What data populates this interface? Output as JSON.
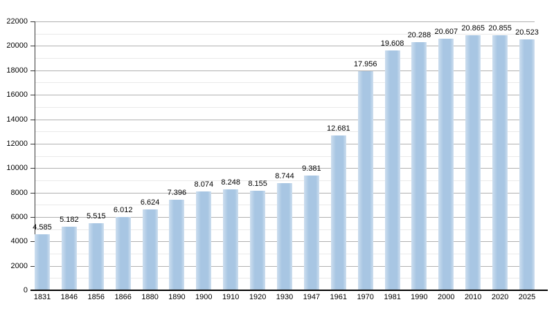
{
  "chart_data": {
    "type": "bar",
    "title": "",
    "xlabel": "",
    "ylabel": "",
    "categories": [
      "1831",
      "1846",
      "1856",
      "1866",
      "1880",
      "1890",
      "1900",
      "1910",
      "1920",
      "1930",
      "1947",
      "1961",
      "1970",
      "1981",
      "1990",
      "2000",
      "2010",
      "2020",
      "2025"
    ],
    "values": [
      4585,
      5182,
      5515,
      6012,
      6624,
      7396,
      8074,
      8248,
      8155,
      8744,
      9381,
      12681,
      17956,
      19608,
      20288,
      20607,
      20865,
      20855,
      20523
    ],
    "value_labels": [
      "4.585",
      "5.182",
      "5.515",
      "6.012",
      "6.624",
      "7.396",
      "8.074",
      "8.248",
      "8.155",
      "8.744",
      "9.381",
      "12.681",
      "17.956",
      "19.608",
      "20.288",
      "20.607",
      "20.865",
      "20.855",
      "20.523"
    ],
    "ylim": [
      0,
      22000
    ],
    "y_major_step": 2000,
    "y_minor_step": 1000,
    "y_tick_labels": [
      "0",
      "2000",
      "4000",
      "6000",
      "8000",
      "10000",
      "12000",
      "14000",
      "16000",
      "18000",
      "20000",
      "22000"
    ],
    "grid": "horizontal-major-and-minor",
    "legend_position": "none",
    "colors": {
      "bar": "#a8c6e3",
      "bar_edge_light": "#cddeef",
      "major_grid": "#b0b0b0",
      "minor_grid": "#e9e9e9",
      "y_axis": "#333333",
      "x_axis": "#000000",
      "text": "#000000",
      "background": "#ffffff"
    }
  }
}
